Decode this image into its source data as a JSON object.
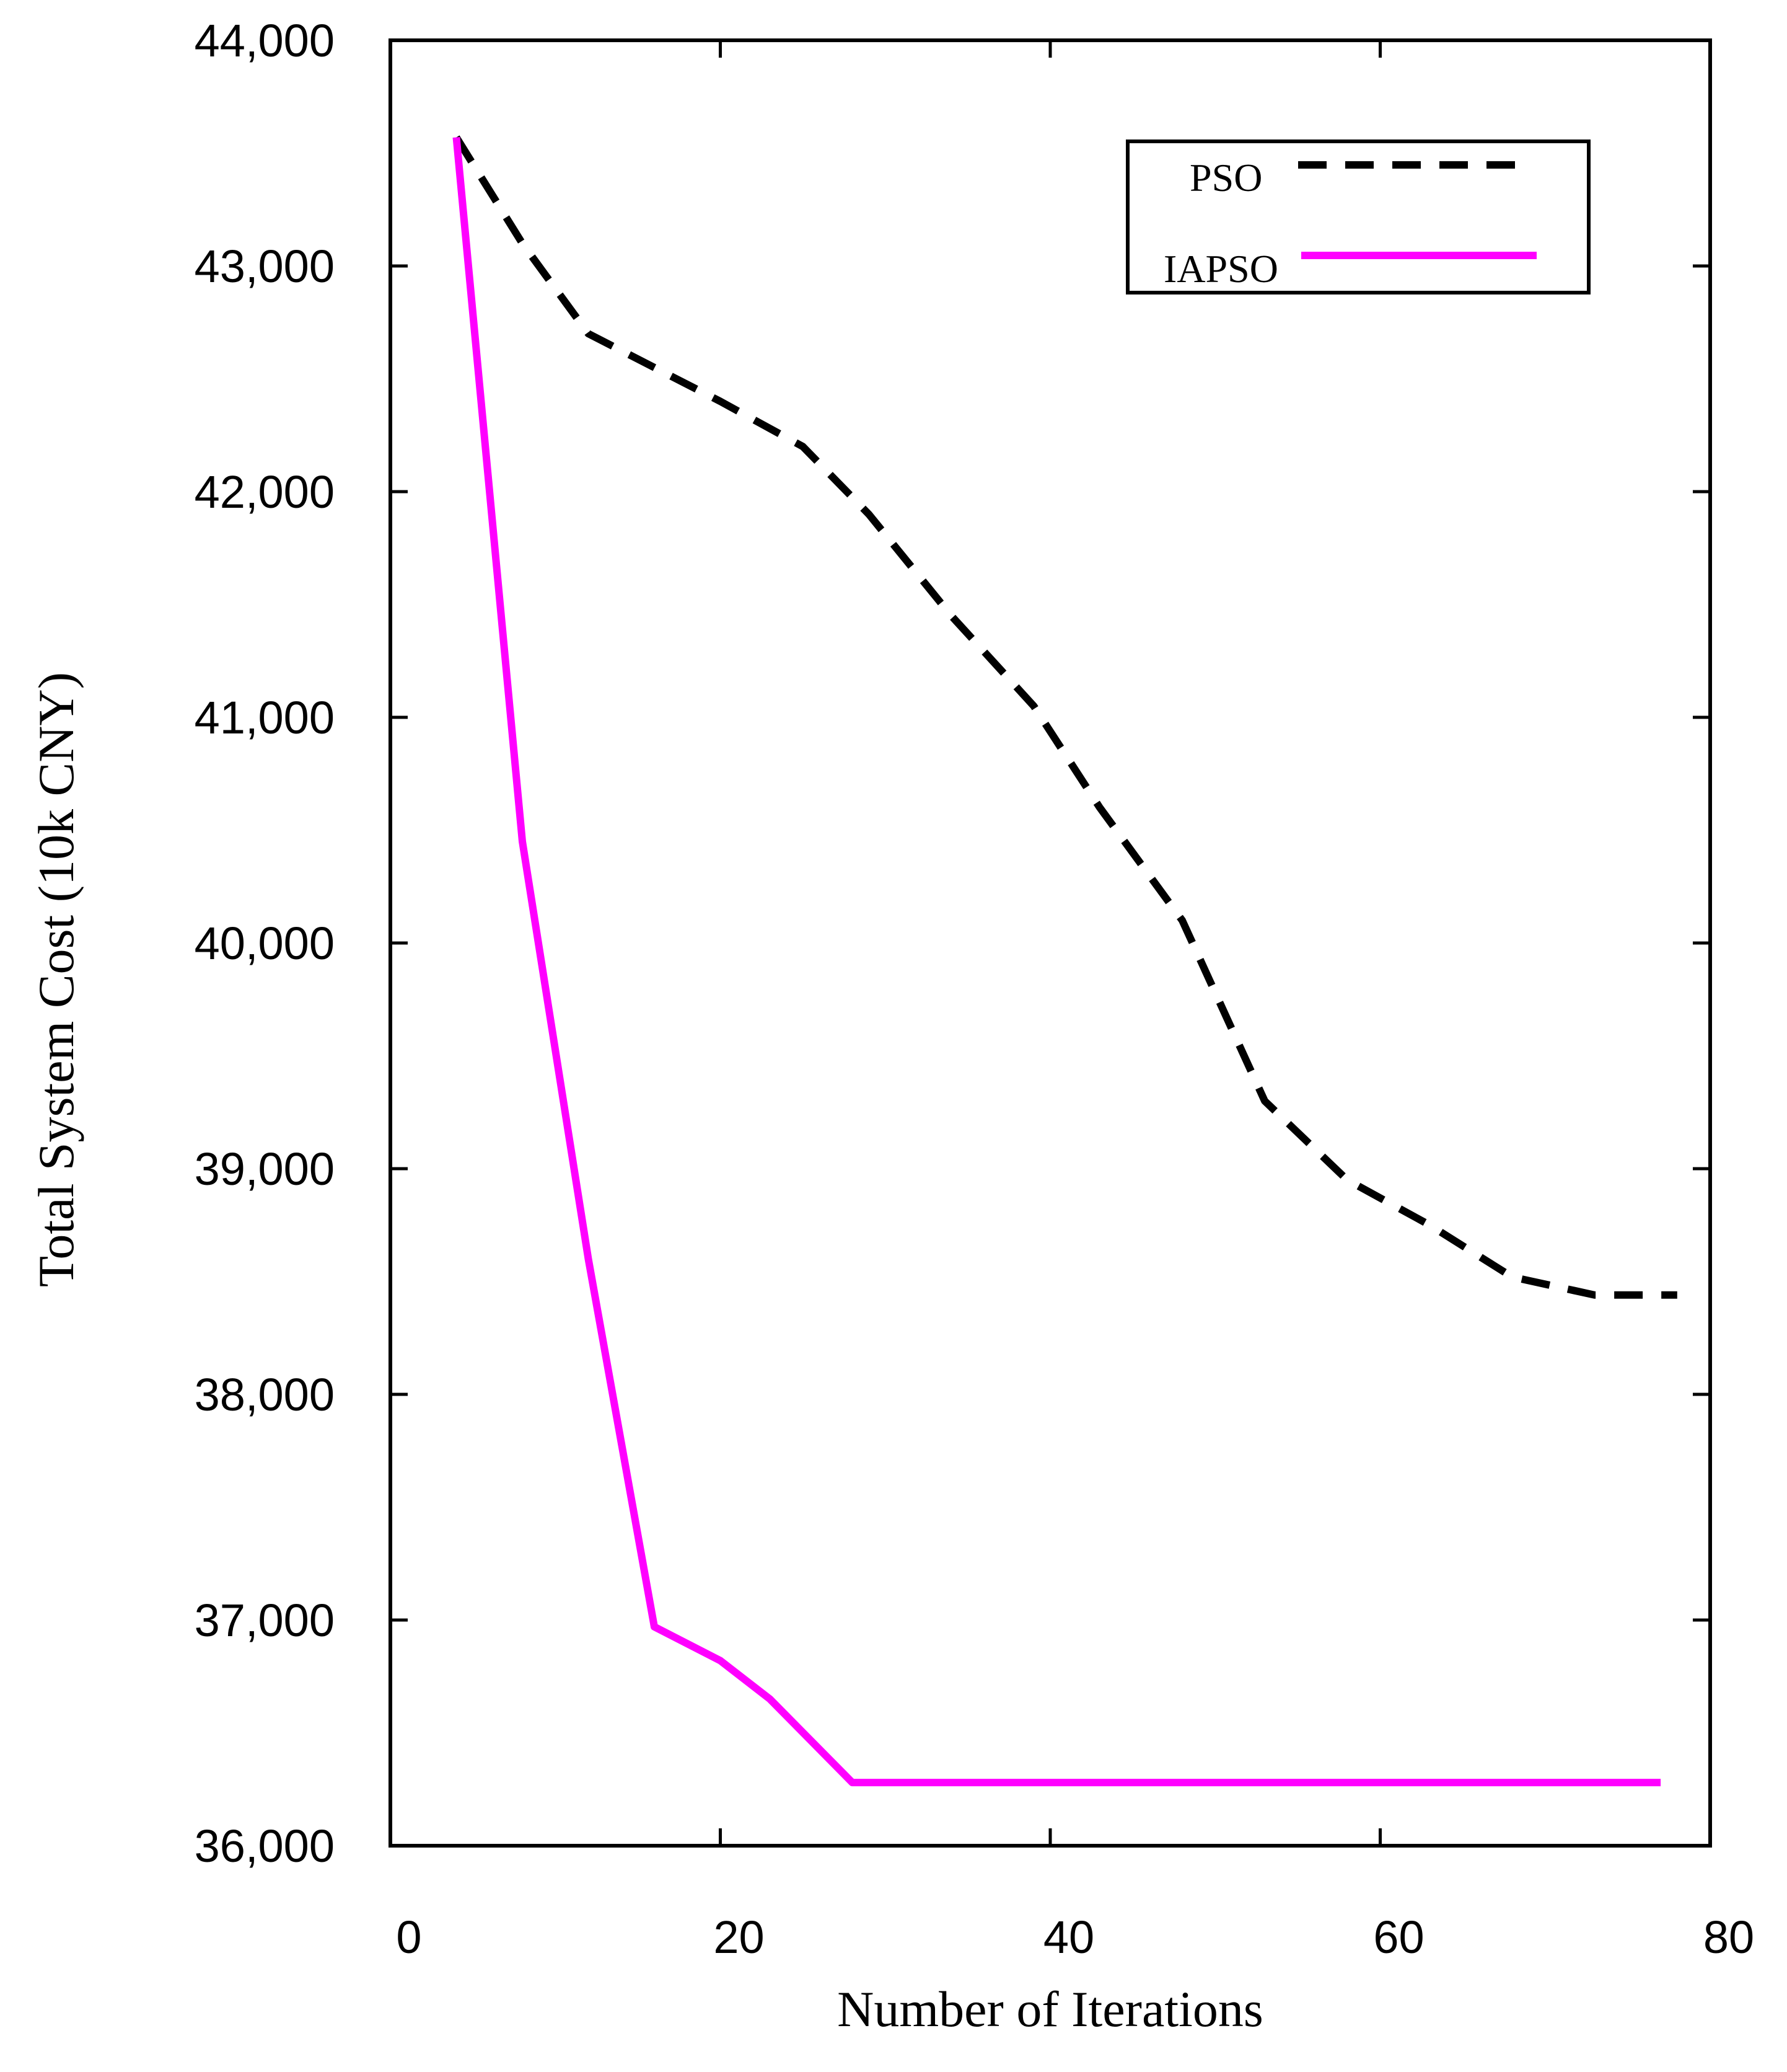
{
  "chart_data": {
    "type": "line",
    "title": "",
    "xlabel": "Number of Iterations",
    "ylabel": "Total System Cost (10k CNY)",
    "xlim": [
      0,
      80
    ],
    "ylim": [
      36000,
      44000
    ],
    "x_ticks": [
      0,
      20,
      40,
      60,
      80
    ],
    "y_ticks": [
      36000,
      37000,
      38000,
      39000,
      40000,
      41000,
      42000,
      43000,
      44000
    ],
    "x_tick_labels": [
      "0",
      "20",
      "40",
      "60",
      "80"
    ],
    "y_tick_labels": [
      "36,000",
      "37,000",
      "38,000",
      "39,000",
      "40,000",
      "41,000",
      "42,000",
      "43,000",
      "44,000"
    ],
    "grid": false,
    "legend_position": "top-right",
    "series": [
      {
        "name": "PSO",
        "color": "#000000",
        "style": "dashed",
        "x": [
          4,
          8,
          12,
          16,
          20,
          25,
          29,
          34,
          39,
          43,
          48,
          53,
          58,
          63,
          68,
          73,
          78
        ],
        "y": [
          43570,
          43100,
          42700,
          42550,
          42400,
          42200,
          41900,
          41450,
          41050,
          40600,
          40100,
          39300,
          38950,
          38750,
          38520,
          38440,
          38440
        ]
      },
      {
        "name": "IAPSO",
        "color": "#ff00ff",
        "style": "solid",
        "x": [
          4,
          8,
          12,
          16,
          20,
          23,
          28,
          40,
          60,
          77
        ],
        "y": [
          43570,
          40450,
          38600,
          36970,
          36820,
          36650,
          36280,
          36280,
          36280,
          36280
        ]
      }
    ]
  }
}
